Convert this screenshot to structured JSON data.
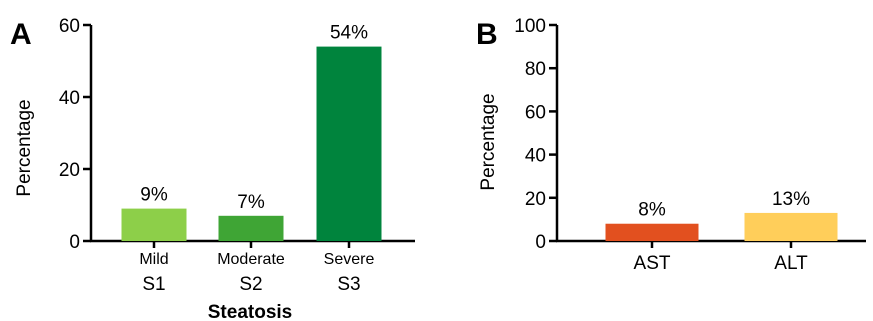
{
  "chart_data": [
    {
      "type": "bar",
      "panel": "A",
      "categories": [
        "S1",
        "S2",
        "S3"
      ],
      "category_sublabels": [
        "Mild",
        "Moderate",
        "Severe"
      ],
      "values": [
        9,
        7,
        54
      ],
      "value_labels": [
        "9%",
        "7%",
        "54%"
      ],
      "colors": [
        "#8dcf49",
        "#3fa535",
        "#00843d"
      ],
      "xlabel": "Steatosis",
      "ylabel": "Percentage",
      "ylim": [
        0,
        60
      ],
      "yticks": [
        0,
        20,
        40,
        60
      ],
      "grid": false
    },
    {
      "type": "bar",
      "panel": "B",
      "categories": [
        "AST",
        "ALT"
      ],
      "values": [
        8,
        13
      ],
      "value_labels": [
        "8%",
        "13%"
      ],
      "colors": [
        "#e2501f",
        "#ffce5a"
      ],
      "xlabel": "",
      "ylabel": "Percentage",
      "ylim": [
        0,
        100
      ],
      "yticks": [
        0,
        20,
        40,
        60,
        80,
        100
      ],
      "grid": false
    }
  ]
}
